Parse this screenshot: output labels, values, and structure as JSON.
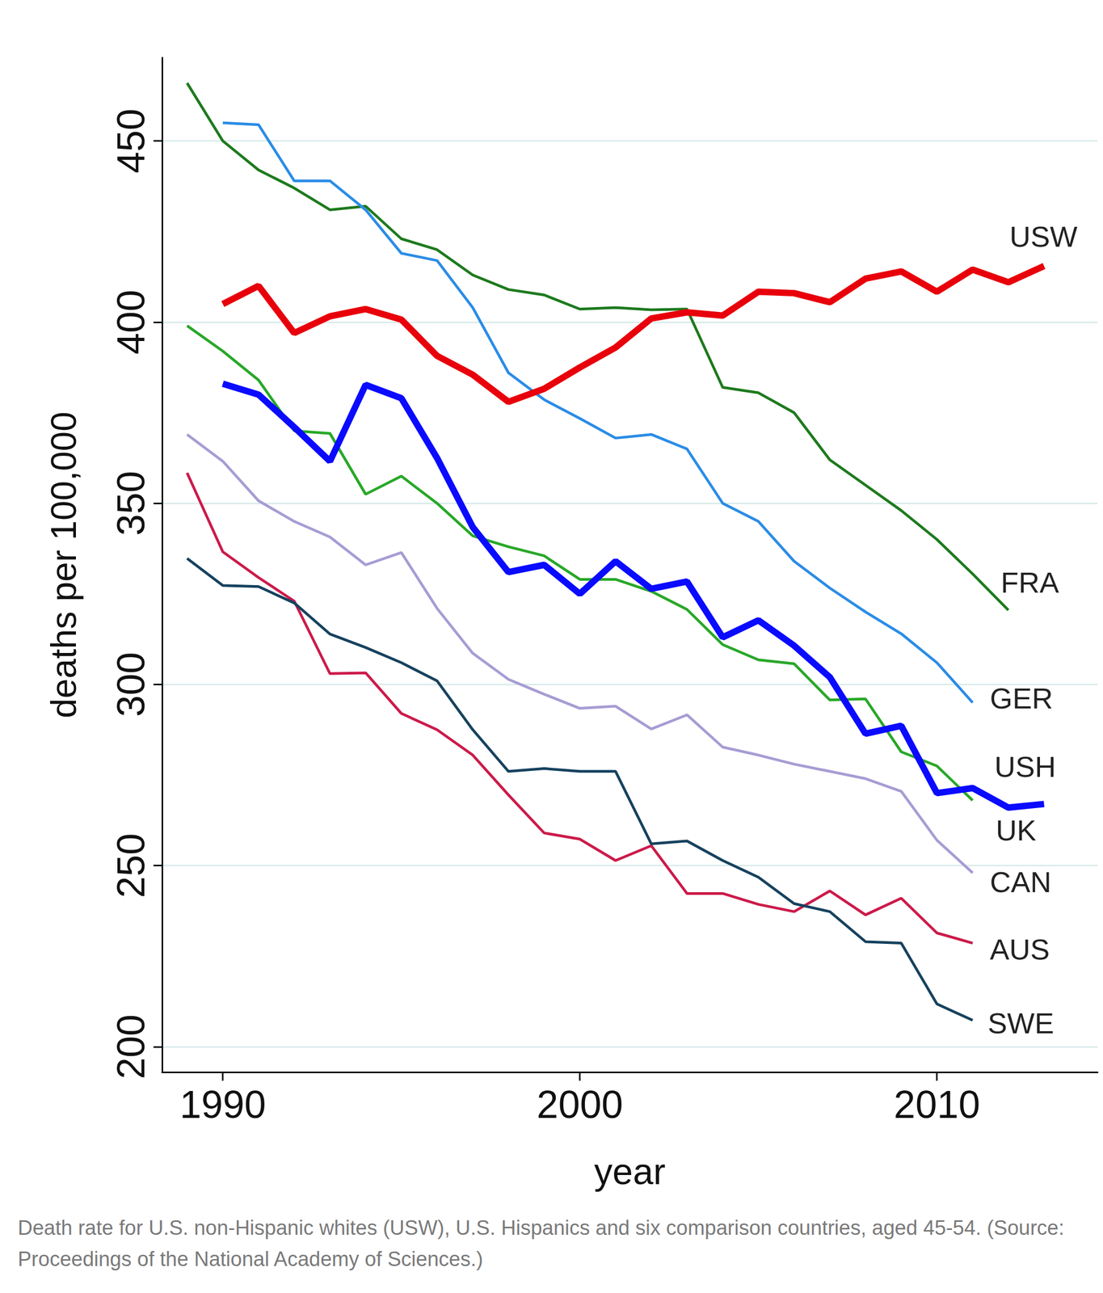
{
  "chart_data": {
    "type": "line",
    "caption": "Death rate for U.S. non-Hispanic whites (USW), U.S. Hispanics and six comparison countries, aged 45-54. (Source: Proceedings of the National Academy of Sciences.)",
    "xlabel": "year",
    "ylabel": "deaths per 100,000",
    "x": [
      1989,
      1990,
      1991,
      1992,
      1993,
      1994,
      1995,
      1996,
      1997,
      1998,
      1999,
      2000,
      2001,
      2002,
      2003,
      2004,
      2005,
      2006,
      2007,
      2008,
      2009,
      2010,
      2011,
      2012,
      2013
    ],
    "xlim": [
      1988.3,
      2014.5
    ],
    "xticks": [
      1990,
      2000,
      2010
    ],
    "ylim": [
      193,
      473
    ],
    "yticks": [
      200,
      250,
      300,
      350,
      400,
      450
    ],
    "grid": true,
    "series": [
      {
        "name": "USW",
        "color": "#e8000b",
        "line_style": "thick",
        "values": [
          null,
          405,
          410,
          397,
          401.6,
          403.6,
          400.7,
          390.7,
          385.5,
          378,
          381.6,
          387.5,
          393,
          401,
          402.7,
          401.8,
          408.4,
          408,
          405.5,
          412,
          414,
          408.4,
          414.5,
          411,
          415.5
        ]
      },
      {
        "name": "FRA",
        "color": "#1d7a1d",
        "line_style": "solid",
        "values": [
          466,
          450,
          442,
          437,
          431,
          432,
          423,
          420,
          413,
          409,
          407.5,
          403.6,
          404,
          403.4,
          403.6,
          382,
          380.5,
          375,
          362,
          355,
          348,
          340,
          330.5,
          320.5,
          null
        ]
      },
      {
        "name": "GER",
        "color": "#2b8ce6",
        "line_style": "solid",
        "values": [
          null,
          455,
          454.5,
          439,
          439,
          431,
          419,
          417,
          404,
          386,
          378.6,
          373.4,
          368,
          369,
          365,
          350,
          345,
          334,
          326.6,
          320,
          314,
          306,
          295,
          null,
          null
        ]
      },
      {
        "name": "USH",
        "color": "#0a0aff",
        "line_style": "thick",
        "values": [
          null,
          383,
          380,
          371,
          361.6,
          382.7,
          379,
          362.5,
          343.4,
          331,
          333,
          325,
          334,
          326.4,
          328.4,
          313,
          317.7,
          310.7,
          302,
          286.4,
          288.6,
          270,
          271.4,
          266,
          267
        ]
      },
      {
        "name": "UK",
        "color": "#28a828",
        "line_style": "solid",
        "values": [
          399,
          392,
          384,
          370,
          369.3,
          352.5,
          357.5,
          350,
          341,
          338,
          335.5,
          329,
          329,
          325.7,
          320.7,
          311,
          306.8,
          305.7,
          295.7,
          296,
          281.4,
          277.5,
          268,
          null,
          null
        ]
      },
      {
        "name": "CAN",
        "color": "#a89cd4",
        "line_style": "solid",
        "values": [
          369,
          361.6,
          350.7,
          345,
          340.7,
          333,
          336.4,
          321,
          308.6,
          301.4,
          297.3,
          293.4,
          294,
          287.7,
          291.6,
          282.7,
          280.5,
          278,
          276,
          274,
          270.5,
          257,
          248,
          null,
          null
        ]
      },
      {
        "name": "AUS",
        "color": "#cc1a4a",
        "line_style": "solid",
        "values": [
          358.4,
          336.6,
          329.5,
          323,
          303,
          303.2,
          292,
          287.5,
          280.5,
          269.5,
          259,
          257.3,
          251.4,
          255.5,
          242.3,
          242.3,
          239.3,
          237.3,
          243,
          236.4,
          241,
          231.4,
          228.6,
          null,
          null
        ]
      },
      {
        "name": "SWE",
        "color": "#16425e",
        "line_style": "solid",
        "values": [
          334.8,
          327.3,
          327,
          322.5,
          313.9,
          310.2,
          306,
          301,
          287.5,
          276,
          276.8,
          276,
          276,
          256,
          256.8,
          251.4,
          246.8,
          239.5,
          237.3,
          229,
          228.6,
          211.8,
          207.3,
          null,
          null
        ]
      }
    ]
  }
}
